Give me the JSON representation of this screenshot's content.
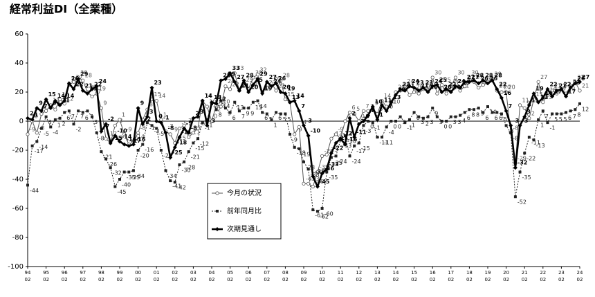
{
  "chart_data": {
    "type": "line",
    "title": "経常利益DI（全業種）",
    "categories": [
      "94",
      null,
      null,
      null,
      "95",
      null,
      null,
      null,
      "96",
      null,
      null,
      null,
      "97",
      null,
      null,
      null,
      "98",
      null,
      null,
      null,
      "99",
      null,
      null,
      null,
      "00",
      null,
      null,
      null,
      "01",
      null,
      null,
      null,
      "02",
      null,
      null,
      null,
      "03",
      null,
      null,
      null,
      "04",
      null,
      null,
      null,
      "05",
      null,
      null,
      null,
      "06",
      null,
      null,
      null,
      "07",
      null,
      null,
      null,
      "08",
      null,
      null,
      null,
      "09",
      null,
      null,
      null,
      "10",
      null,
      null,
      null,
      "11",
      null,
      null,
      null,
      "12",
      null,
      null,
      null,
      "13",
      null,
      null,
      null,
      "14",
      null,
      null,
      null,
      "15",
      null,
      null,
      null,
      "16",
      null,
      null,
      null,
      "17",
      null,
      null,
      null,
      "18",
      null,
      null,
      null,
      "19",
      null,
      null,
      null,
      "20",
      null,
      null,
      null,
      "21",
      null,
      null,
      null,
      "22",
      null,
      null,
      null,
      "23",
      null,
      null,
      null,
      "24"
    ],
    "category_months": [
      "02",
      null,
      null,
      null,
      "02",
      null,
      null,
      null,
      "02",
      null,
      null,
      null,
      "02",
      null,
      null,
      null,
      "02",
      null,
      null,
      null,
      "02",
      null,
      null,
      null,
      "02",
      null,
      null,
      null,
      "02",
      null,
      null,
      null,
      "02",
      null,
      null,
      null,
      "02",
      null,
      null,
      null,
      "02",
      null,
      null,
      null,
      "02",
      null,
      null,
      null,
      "02",
      null,
      null,
      null,
      "02",
      null,
      null,
      null,
      "02",
      null,
      null,
      null,
      "02",
      null,
      null,
      null,
      "02",
      null,
      null,
      null,
      "02",
      null,
      null,
      null,
      "02",
      null,
      null,
      null,
      "02",
      null,
      null,
      null,
      "02",
      null,
      null,
      null,
      "02",
      null,
      null,
      null,
      "02",
      null,
      null,
      null,
      "02",
      null,
      null,
      null,
      "02",
      null,
      null,
      null,
      "02",
      null,
      null,
      null,
      "02",
      null,
      null,
      null,
      "02",
      null,
      null,
      null,
      "02",
      null,
      null,
      null,
      "02",
      null,
      null,
      null,
      "02"
    ],
    "series": [
      {
        "name": "今月の状況",
        "color": "#555555",
        "marker": "circle",
        "values": [
          -9,
          0,
          -8,
          5,
          7,
          11,
          8,
          15,
          12,
          25,
          27,
          30,
          28,
          20,
          17,
          19,
          9,
          -12,
          -15,
          -3,
          1,
          -9,
          -16,
          -14,
          -8,
          1,
          8,
          15,
          14,
          1,
          -7,
          -9,
          -15,
          -5,
          -3,
          -11,
          -8,
          -5,
          14,
          10,
          0,
          11,
          10,
          24,
          22,
          33,
          21,
          25,
          22,
          30,
          32,
          20,
          23,
          26,
          21,
          28,
          15,
          13,
          -9,
          -4,
          -43,
          -43,
          -45,
          -35,
          -24,
          -23,
          -12,
          -9,
          -12,
          0,
          6,
          5,
          0,
          7,
          7,
          9,
          5,
          14,
          10,
          10,
          20,
          21,
          24,
          18,
          20,
          19,
          22,
          21,
          30,
          19,
          25,
          19,
          24,
          30,
          21,
          24,
          30,
          27,
          23,
          25,
          27,
          29,
          21,
          20,
          20,
          -8,
          -29,
          11,
          9,
          2,
          15,
          27,
          13,
          18,
          21,
          19,
          22,
          19,
          24,
          27,
          21
        ]
      },
      {
        "name": "前年同月比",
        "color": "#222222",
        "marker": "square",
        "values": [
          -44,
          -17,
          -14,
          -5,
          3,
          -4,
          1,
          2,
          6,
          7,
          -2,
          7,
          6,
          7,
          3,
          -8,
          -21,
          -26,
          -32,
          -45,
          -40,
          -35,
          -35,
          -34,
          -20,
          -16,
          -1,
          -3,
          -5,
          -20,
          -34,
          -41,
          -42,
          -30,
          -28,
          -21,
          -15,
          -12,
          -1,
          1,
          12,
          8,
          14,
          9,
          6,
          13,
          7,
          9,
          9,
          13,
          14,
          6,
          5,
          1,
          6,
          5,
          5,
          -9,
          -18,
          -19,
          -28,
          -33,
          -61,
          -62,
          -60,
          -35,
          -25,
          -24,
          -13,
          -10,
          -24,
          -17,
          -15,
          -3,
          0,
          -1,
          -11,
          -11,
          -4,
          0,
          0,
          3,
          -1,
          1,
          6,
          3,
          2,
          3,
          9,
          3,
          0,
          0,
          3,
          3,
          4,
          6,
          8,
          8,
          9,
          6,
          10,
          6,
          6,
          5,
          -3,
          -8,
          -52,
          -35,
          -22,
          -11,
          -13,
          1,
          7,
          -1,
          5,
          5,
          5,
          6,
          7,
          8,
          12
        ]
      },
      {
        "name": "次期見通し",
        "color": "#000000",
        "marker": "diamond",
        "values": [
          2,
          1,
          9,
          7,
          15,
          9,
          14,
          11,
          14,
          26,
          22,
          29,
          21,
          19,
          22,
          24,
          -7,
          -2,
          -15,
          -10,
          -14,
          -16,
          -17,
          -16,
          9,
          -2,
          3,
          23,
          0,
          -1,
          -8,
          -25,
          -18,
          -11,
          -5,
          -8,
          2,
          3,
          14,
          -3,
          13,
          12,
          28,
          29,
          33,
          27,
          21,
          28,
          20,
          25,
          29,
          19,
          27,
          24,
          26,
          20,
          19,
          13,
          14,
          7,
          -3,
          -10,
          -38,
          -45,
          -36,
          -33,
          -22,
          -15,
          -12,
          -16,
          2,
          -11,
          -2,
          0,
          4,
          10,
          1,
          11,
          7,
          13,
          18,
          22,
          21,
          24,
          23,
          21,
          23,
          20,
          24,
          25,
          20,
          22,
          20,
          24,
          23,
          27,
          27,
          28,
          26,
          28,
          26,
          28,
          22,
          16,
          7,
          -3,
          -32,
          -3,
          3,
          11,
          19,
          13,
          16,
          22,
          17,
          21,
          22,
          17,
          23,
          26,
          27
        ]
      }
    ],
    "ylim": [
      -100,
      60
    ],
    "yticks": [
      -100,
      -80,
      -60,
      -40,
      -20,
      0,
      20,
      40,
      60
    ]
  }
}
